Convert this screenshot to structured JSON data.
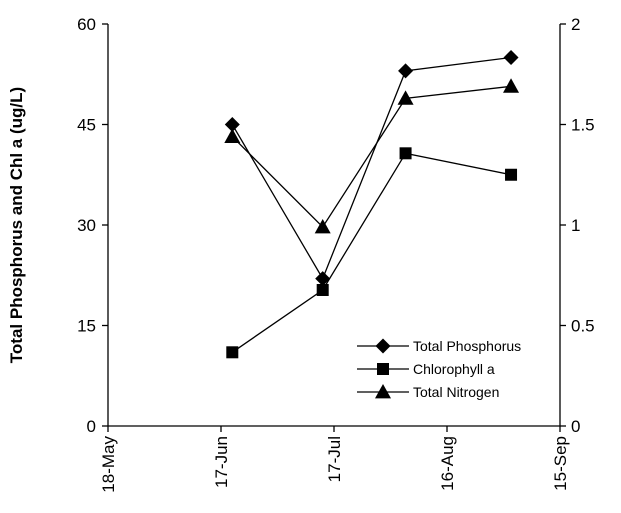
{
  "chart_data": {
    "type": "line",
    "title": "",
    "xlabel": "",
    "ylabel": "Total Phosphorus and Chl a (ug/L)",
    "y2label": "",
    "x_ticks": [
      "18-May",
      "17-Jun",
      "17-Jul",
      "16-Aug",
      "15-Sep"
    ],
    "xlim": [
      "18-May",
      "15-Sep"
    ],
    "ylim": [
      0,
      60
    ],
    "y_ticks": [
      "0",
      "15",
      "30",
      "45",
      "60"
    ],
    "y2lim": [
      0,
      2
    ],
    "y2_ticks": [
      "0",
      "0.5",
      "1",
      "1.5",
      "2"
    ],
    "grid": false,
    "legend_position": "bottom-right",
    "series": [
      {
        "name": "Total Phosphorus",
        "axis": "left",
        "marker": "diamond",
        "x": [
          "20-Jun",
          "14-Jul",
          "5-Aug",
          "2-Sep"
        ],
        "y": [
          45,
          22,
          53,
          55
        ]
      },
      {
        "name": "Chlorophyll a",
        "axis": "left",
        "marker": "square",
        "x": [
          "20-Jun",
          "14-Jul",
          "5-Aug",
          "2-Sep"
        ],
        "y": [
          11,
          20.3,
          40.7,
          37.5
        ]
      },
      {
        "name": "Total Nitrogen",
        "axis": "right",
        "marker": "triangle",
        "x": [
          "20-Jun",
          "14-Jul",
          "5-Aug",
          "2-Sep"
        ],
        "y": [
          1.44,
          0.99,
          1.63,
          1.69
        ]
      }
    ]
  }
}
